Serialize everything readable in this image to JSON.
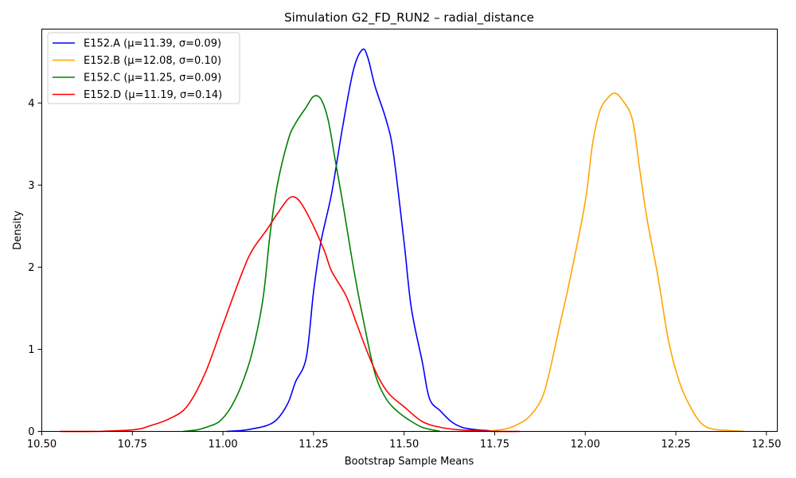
{
  "chart_data": {
    "type": "line",
    "title": "Simulation G2_FD_RUN2 – radial_distance",
    "xlabel": "Bootstrap Sample Means",
    "ylabel": "Density",
    "xlim": [
      10.5,
      12.53
    ],
    "ylim": [
      0,
      4.9
    ],
    "xticks": [
      "10.50",
      "10.75",
      "11.00",
      "11.25",
      "11.50",
      "11.75",
      "12.00",
      "12.25",
      "12.50"
    ],
    "yticks": [
      "0",
      "1",
      "2",
      "3",
      "4"
    ],
    "grid": false,
    "legend_position": "top-left",
    "series": [
      {
        "name": "E152.A (μ=11.39, σ=0.09)",
        "color": "#0000ff",
        "x": [
          11.01,
          11.05,
          11.08,
          11.12,
          11.15,
          11.18,
          11.2,
          11.23,
          11.25,
          11.27,
          11.3,
          11.33,
          11.36,
          11.385,
          11.4,
          11.42,
          11.45,
          11.47,
          11.5,
          11.52,
          11.55,
          11.57,
          11.6,
          11.63,
          11.66,
          11.7,
          11.73,
          11.76
        ],
        "y": [
          0.0,
          0.01,
          0.03,
          0.07,
          0.15,
          0.35,
          0.6,
          0.9,
          1.7,
          2.3,
          2.9,
          3.7,
          4.4,
          4.65,
          4.55,
          4.2,
          3.8,
          3.4,
          2.3,
          1.5,
          0.85,
          0.4,
          0.25,
          0.12,
          0.05,
          0.02,
          0.01,
          0.0
        ]
      },
      {
        "name": "E152.B (μ=12.08, σ=0.10)",
        "color": "#ffa500",
        "x": [
          11.72,
          11.78,
          11.82,
          11.85,
          11.88,
          11.9,
          11.93,
          11.96,
          12.0,
          12.02,
          12.04,
          12.06,
          12.08,
          12.1,
          12.13,
          12.15,
          12.17,
          12.2,
          12.23,
          12.26,
          12.29,
          12.32,
          12.35,
          12.4,
          12.44
        ],
        "y": [
          0.0,
          0.03,
          0.1,
          0.2,
          0.4,
          0.7,
          1.3,
          1.9,
          2.8,
          3.5,
          3.9,
          4.05,
          4.12,
          4.05,
          3.8,
          3.2,
          2.6,
          1.9,
          1.1,
          0.6,
          0.3,
          0.1,
          0.03,
          0.01,
          0.0
        ]
      },
      {
        "name": "E152.C (μ=11.25, σ=0.09)",
        "color": "#008000",
        "x": [
          10.89,
          10.93,
          10.96,
          10.99,
          11.02,
          11.05,
          11.08,
          11.11,
          11.13,
          11.15,
          11.18,
          11.2,
          11.23,
          11.25,
          11.27,
          11.29,
          11.31,
          11.33,
          11.36,
          11.39,
          11.42,
          11.45,
          11.48,
          11.51,
          11.55,
          11.6
        ],
        "y": [
          0.0,
          0.02,
          0.06,
          0.12,
          0.28,
          0.55,
          0.95,
          1.6,
          2.4,
          3.0,
          3.55,
          3.75,
          3.95,
          4.08,
          4.05,
          3.8,
          3.3,
          2.8,
          2.0,
          1.3,
          0.7,
          0.4,
          0.25,
          0.15,
          0.05,
          0.0
        ]
      },
      {
        "name": "E152.D (μ=11.19, σ=0.14)",
        "color": "#ff0000",
        "x": [
          10.55,
          10.65,
          10.72,
          10.77,
          10.8,
          10.85,
          10.9,
          10.95,
          11.0,
          11.05,
          11.08,
          11.12,
          11.15,
          11.18,
          11.2,
          11.22,
          11.25,
          11.28,
          11.3,
          11.34,
          11.37,
          11.4,
          11.43,
          11.46,
          11.5,
          11.55,
          11.6,
          11.65,
          11.7,
          11.75,
          11.82
        ],
        "y": [
          0.0,
          0.0,
          0.01,
          0.03,
          0.07,
          0.15,
          0.3,
          0.7,
          1.3,
          1.9,
          2.2,
          2.45,
          2.65,
          2.83,
          2.85,
          2.75,
          2.5,
          2.2,
          1.95,
          1.65,
          1.3,
          0.95,
          0.65,
          0.45,
          0.3,
          0.12,
          0.05,
          0.02,
          0.01,
          0.0,
          0.0
        ]
      }
    ]
  }
}
